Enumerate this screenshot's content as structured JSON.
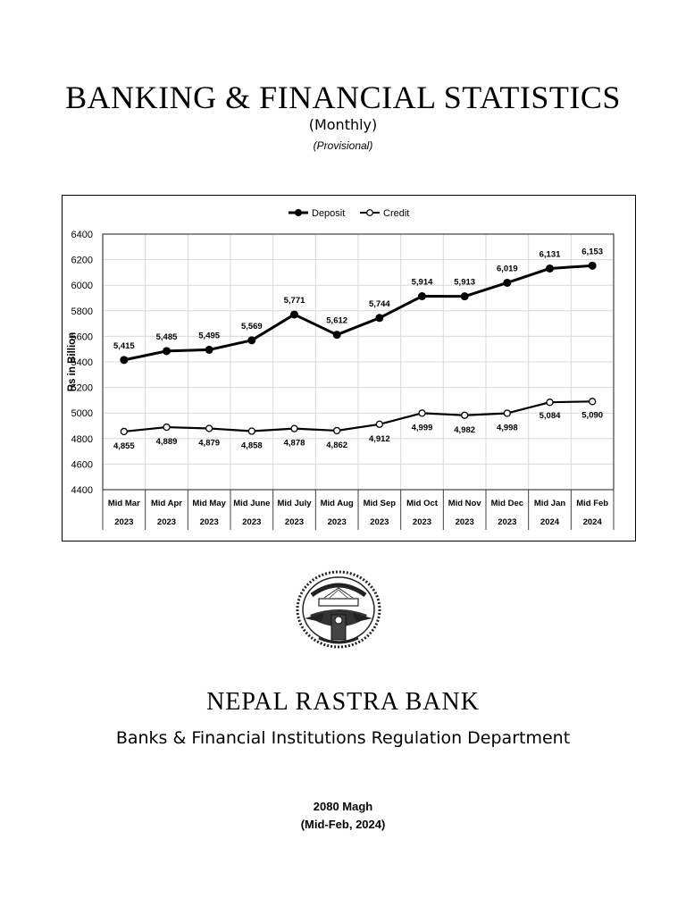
{
  "header": {
    "title": "BANKING & FINANCIAL STATISTICS",
    "subtitle": "(Monthly)",
    "note": "(Provisional)"
  },
  "chart_data": {
    "type": "line",
    "title": "",
    "xlabel": "",
    "ylabel": "Rs in Billion",
    "ylim": [
      4400,
      6400
    ],
    "yticks": [
      4400,
      4600,
      4800,
      5000,
      5200,
      5400,
      5600,
      5800,
      6000,
      6200,
      6400
    ],
    "grid": true,
    "legend_position": "top",
    "categories": [
      "Mid Mar 2023",
      "Mid Apr 2023",
      "Mid May 2023",
      "Mid June 2023",
      "Mid July 2023",
      "Mid Aug 2023",
      "Mid Sep 2023",
      "Mid Oct 2023",
      "Mid Nov 2023",
      "Mid Dec 2023",
      "Mid Jan 2024",
      "Mid Feb 2024"
    ],
    "category_lines": [
      [
        "Mid Mar",
        "2023"
      ],
      [
        "Mid Apr",
        "2023"
      ],
      [
        "Mid May",
        "2023"
      ],
      [
        "Mid June",
        "2023"
      ],
      [
        "Mid July",
        "2023"
      ],
      [
        "Mid Aug",
        "2023"
      ],
      [
        "Mid Sep",
        "2023"
      ],
      [
        "Mid Oct",
        "2023"
      ],
      [
        "Mid Nov",
        "2023"
      ],
      [
        "Mid Dec",
        "2023"
      ],
      [
        "Mid Jan",
        "2024"
      ],
      [
        "Mid Feb",
        "2024"
      ]
    ],
    "series": [
      {
        "name": "Deposit",
        "marker": "filled-circle",
        "values": [
          5415,
          5485,
          5495,
          5569,
          5771,
          5612,
          5744,
          5914,
          5913,
          6019,
          6131,
          6153
        ],
        "labels": [
          "5,415",
          "5,485",
          "5,495",
          "5,569",
          "5,771",
          "5,612",
          "5,744",
          "5,914",
          "5,913",
          "6,019",
          "6,131",
          "6,153"
        ]
      },
      {
        "name": "Credit",
        "marker": "open-circle",
        "values": [
          4855,
          4889,
          4879,
          4858,
          4878,
          4862,
          4912,
          4999,
          4982,
          4998,
          5084,
          5090
        ],
        "labels": [
          "4,855",
          "4,889",
          "4,879",
          "4,858",
          "4,878",
          "4,862",
          "4,912",
          "4,999",
          "4,982",
          "4,998",
          "5,084",
          "5,090"
        ]
      }
    ]
  },
  "footer": {
    "bank_name": "NEPAL RASTRA BANK",
    "department": "Banks & Financial Institutions Regulation Department",
    "date_nepali": "2080 Magh",
    "date_english": "(Mid-Feb, 2024)"
  },
  "logo": {
    "icon": "nrb-emblem-icon"
  }
}
